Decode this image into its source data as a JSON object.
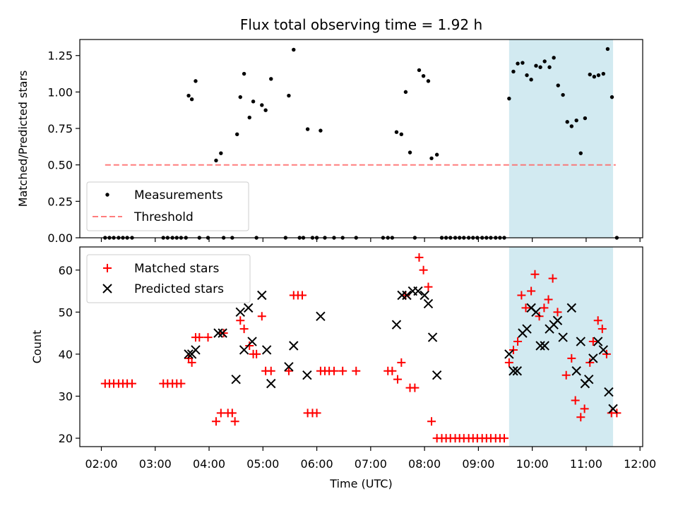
{
  "chart_data": [
    {
      "type": "scatter",
      "title": "Flux total observing time = 1.92 h",
      "xlabel": "",
      "ylabel": "Matched/Predicted stars",
      "ylim": [
        0,
        1.36
      ],
      "yticks": [
        0.0,
        0.25,
        0.5,
        0.75,
        1.0,
        1.25
      ],
      "ytick_labels": [
        "0.00",
        "0.25",
        "0.50",
        "0.75",
        "1.00",
        "1.25"
      ],
      "xlim": [
        1.6,
        12.05
      ],
      "xticks": [
        2,
        3,
        4,
        5,
        6,
        7,
        8,
        9,
        10,
        11,
        12
      ],
      "grid": false,
      "legend": "lower-left",
      "shaded_region": {
        "x0": 9.57,
        "x1": 11.5,
        "color": "#add8e6"
      },
      "threshold": {
        "name": "Threshold",
        "y": 0.5,
        "x0": 2.07,
        "x1": 11.55,
        "color": "#ff6666"
      },
      "series": [
        {
          "name": "Measurements",
          "color": "#000000",
          "points": [
            [
              2.07,
              0
            ],
            [
              2.15,
              0
            ],
            [
              2.23,
              0
            ],
            [
              2.32,
              0
            ],
            [
              2.4,
              0
            ],
            [
              2.48,
              0
            ],
            [
              2.57,
              0
            ],
            [
              3.15,
              0
            ],
            [
              3.23,
              0
            ],
            [
              3.32,
              0
            ],
            [
              3.4,
              0
            ],
            [
              3.48,
              0
            ],
            [
              3.57,
              0
            ],
            [
              3.62,
              0.975
            ],
            [
              3.68,
              0.95
            ],
            [
              3.75,
              1.075
            ],
            [
              3.82,
              0
            ],
            [
              3.98,
              0
            ],
            [
              4.13,
              0.53
            ],
            [
              4.22,
              0.58
            ],
            [
              4.27,
              0
            ],
            [
              4.43,
              0
            ],
            [
              4.52,
              0.71
            ],
            [
              4.58,
              0.965
            ],
            [
              4.65,
              1.125
            ],
            [
              4.75,
              0.825
            ],
            [
              4.82,
              0.935
            ],
            [
              4.88,
              0
            ],
            [
              4.98,
              0.91
            ],
            [
              5.05,
              0.875
            ],
            [
              5.15,
              1.09
            ],
            [
              5.42,
              0
            ],
            [
              5.48,
              0.975
            ],
            [
              5.57,
              1.29
            ],
            [
              5.68,
              0
            ],
            [
              5.75,
              0
            ],
            [
              5.83,
              0.745
            ],
            [
              5.92,
              0
            ],
            [
              6.0,
              0
            ],
            [
              6.07,
              0.735
            ],
            [
              6.15,
              0
            ],
            [
              6.32,
              0
            ],
            [
              6.48,
              0
            ],
            [
              6.73,
              0
            ],
            [
              7.23,
              0
            ],
            [
              7.32,
              0
            ],
            [
              7.4,
              0
            ],
            [
              7.48,
              0.725
            ],
            [
              7.57,
              0.71
            ],
            [
              7.65,
              1.0
            ],
            [
              7.73,
              0.585
            ],
            [
              7.82,
              0
            ],
            [
              7.9,
              1.15
            ],
            [
              7.98,
              1.11
            ],
            [
              8.07,
              1.075
            ],
            [
              8.13,
              0.545
            ],
            [
              8.23,
              0.57
            ],
            [
              8.32,
              0
            ],
            [
              8.4,
              0
            ],
            [
              8.48,
              0
            ],
            [
              8.57,
              0
            ],
            [
              8.65,
              0
            ],
            [
              8.73,
              0
            ],
            [
              8.82,
              0
            ],
            [
              8.9,
              0
            ],
            [
              8.98,
              0
            ],
            [
              9.07,
              0
            ],
            [
              9.15,
              0
            ],
            [
              9.23,
              0
            ],
            [
              9.32,
              0
            ],
            [
              9.4,
              0
            ],
            [
              9.48,
              0
            ],
            [
              9.57,
              0.955
            ],
            [
              9.65,
              1.14
            ],
            [
              9.73,
              1.195
            ],
            [
              9.82,
              1.2
            ],
            [
              9.9,
              1.115
            ],
            [
              9.98,
              1.085
            ],
            [
              10.07,
              1.18
            ],
            [
              10.15,
              1.17
            ],
            [
              10.23,
              1.21
            ],
            [
              10.32,
              1.17
            ],
            [
              10.4,
              1.235
            ],
            [
              10.48,
              1.045
            ],
            [
              10.57,
              0.98
            ],
            [
              10.65,
              0.795
            ],
            [
              10.73,
              0.765
            ],
            [
              10.82,
              0.805
            ],
            [
              10.9,
              0.58
            ],
            [
              10.98,
              0.82
            ],
            [
              11.07,
              1.12
            ],
            [
              11.15,
              1.105
            ],
            [
              11.23,
              1.115
            ],
            [
              11.32,
              1.125
            ],
            [
              11.4,
              1.295
            ],
            [
              11.48,
              0.965
            ],
            [
              11.57,
              0
            ]
          ]
        }
      ]
    },
    {
      "type": "scatter",
      "title": "",
      "xlabel": "Time (UTC)",
      "ylabel": "Count",
      "ylim": [
        18,
        65.5
      ],
      "yticks": [
        20,
        30,
        40,
        50,
        60
      ],
      "ytick_labels": [
        "20",
        "30",
        "40",
        "50",
        "60"
      ],
      "xlim": [
        1.6,
        12.05
      ],
      "xticks": [
        2,
        3,
        4,
        5,
        6,
        7,
        8,
        9,
        10,
        11,
        12
      ],
      "xtick_labels": [
        "02:00",
        "03:00",
        "04:00",
        "05:00",
        "06:00",
        "07:00",
        "08:00",
        "09:00",
        "10:00",
        "11:00",
        "12:00"
      ],
      "grid": false,
      "legend": "upper-left",
      "shaded_region": {
        "x0": 9.57,
        "x1": 11.5,
        "color": "#add8e6"
      },
      "series": [
        {
          "name": "Matched stars",
          "marker": "+",
          "color": "#ff0000",
          "points": [
            [
              2.07,
              33
            ],
            [
              2.15,
              33
            ],
            [
              2.23,
              33
            ],
            [
              2.32,
              33
            ],
            [
              2.4,
              33
            ],
            [
              2.48,
              33
            ],
            [
              2.57,
              33
            ],
            [
              3.15,
              33
            ],
            [
              3.23,
              33
            ],
            [
              3.32,
              33
            ],
            [
              3.4,
              33
            ],
            [
              3.48,
              33
            ],
            [
              3.62,
              39
            ],
            [
              3.68,
              38
            ],
            [
              3.75,
              44
            ],
            [
              3.82,
              44
            ],
            [
              3.98,
              44
            ],
            [
              4.13,
              24
            ],
            [
              4.22,
              26
            ],
            [
              4.27,
              45
            ],
            [
              4.35,
              26
            ],
            [
              4.43,
              26
            ],
            [
              4.48,
              24
            ],
            [
              4.58,
              48
            ],
            [
              4.65,
              46
            ],
            [
              4.75,
              42
            ],
            [
              4.82,
              40
            ],
            [
              4.88,
              40
            ],
            [
              4.98,
              49
            ],
            [
              5.05,
              36
            ],
            [
              5.15,
              36
            ],
            [
              5.48,
              36
            ],
            [
              5.57,
              54
            ],
            [
              5.65,
              54
            ],
            [
              5.73,
              54
            ],
            [
              5.83,
              26
            ],
            [
              5.92,
              26
            ],
            [
              6.0,
              26
            ],
            [
              6.07,
              36
            ],
            [
              6.15,
              36
            ],
            [
              6.23,
              36
            ],
            [
              6.32,
              36
            ],
            [
              6.48,
              36
            ],
            [
              6.73,
              36
            ],
            [
              7.32,
              36
            ],
            [
              7.4,
              36
            ],
            [
              7.5,
              34
            ],
            [
              7.57,
              38
            ],
            [
              7.65,
              54
            ],
            [
              7.73,
              32
            ],
            [
              7.82,
              32
            ],
            [
              7.9,
              63
            ],
            [
              7.98,
              60
            ],
            [
              8.07,
              56
            ],
            [
              8.13,
              24
            ],
            [
              8.23,
              20
            ],
            [
              8.32,
              20
            ],
            [
              8.4,
              20
            ],
            [
              8.48,
              20
            ],
            [
              8.57,
              20
            ],
            [
              8.65,
              20
            ],
            [
              8.73,
              20
            ],
            [
              8.82,
              20
            ],
            [
              8.9,
              20
            ],
            [
              8.98,
              20
            ],
            [
              9.07,
              20
            ],
            [
              9.15,
              20
            ],
            [
              9.23,
              20
            ],
            [
              9.32,
              20
            ],
            [
              9.4,
              20
            ],
            [
              9.48,
              20
            ],
            [
              9.57,
              38
            ],
            [
              9.65,
              41
            ],
            [
              9.73,
              43
            ],
            [
              9.8,
              54
            ],
            [
              9.88,
              51
            ],
            [
              9.98,
              55
            ],
            [
              10.05,
              59
            ],
            [
              10.13,
              49
            ],
            [
              10.22,
              51
            ],
            [
              10.3,
              53
            ],
            [
              10.38,
              58
            ],
            [
              10.47,
              50
            ],
            [
              10.63,
              35
            ],
            [
              10.73,
              39
            ],
            [
              10.8,
              29
            ],
            [
              10.9,
              25
            ],
            [
              10.97,
              27
            ],
            [
              11.07,
              38
            ],
            [
              11.13,
              43
            ],
            [
              11.22,
              48
            ],
            [
              11.3,
              46
            ],
            [
              11.38,
              40
            ],
            [
              11.47,
              26
            ],
            [
              11.57,
              26
            ]
          ]
        },
        {
          "name": "Predicted stars",
          "marker": "x",
          "color": "#000000",
          "points": [
            [
              3.62,
              40
            ],
            [
              3.68,
              40
            ],
            [
              3.75,
              41
            ],
            [
              4.17,
              45
            ],
            [
              4.25,
              45
            ],
            [
              4.5,
              34
            ],
            [
              4.58,
              50
            ],
            [
              4.65,
              41
            ],
            [
              4.73,
              51
            ],
            [
              4.8,
              43
            ],
            [
              4.98,
              54
            ],
            [
              5.07,
              41
            ],
            [
              5.15,
              33
            ],
            [
              5.48,
              37
            ],
            [
              5.57,
              42
            ],
            [
              5.82,
              35
            ],
            [
              6.07,
              49
            ],
            [
              7.48,
              47
            ],
            [
              7.58,
              54
            ],
            [
              7.67,
              54
            ],
            [
              7.78,
              55
            ],
            [
              7.88,
              55
            ],
            [
              8.0,
              54
            ],
            [
              8.07,
              52
            ],
            [
              8.15,
              44
            ],
            [
              8.23,
              35
            ],
            [
              9.57,
              40
            ],
            [
              9.65,
              36
            ],
            [
              9.72,
              36
            ],
            [
              9.82,
              45
            ],
            [
              9.9,
              46
            ],
            [
              9.98,
              51
            ],
            [
              10.07,
              50
            ],
            [
              10.15,
              42
            ],
            [
              10.23,
              42
            ],
            [
              10.32,
              46
            ],
            [
              10.4,
              47
            ],
            [
              10.47,
              48
            ],
            [
              10.57,
              44
            ],
            [
              10.73,
              51
            ],
            [
              10.82,
              36
            ],
            [
              10.9,
              43
            ],
            [
              10.98,
              33
            ],
            [
              11.05,
              34
            ],
            [
              11.13,
              39
            ],
            [
              11.22,
              43
            ],
            [
              11.32,
              41
            ],
            [
              11.42,
              31
            ],
            [
              11.5,
              27
            ]
          ]
        }
      ]
    }
  ]
}
